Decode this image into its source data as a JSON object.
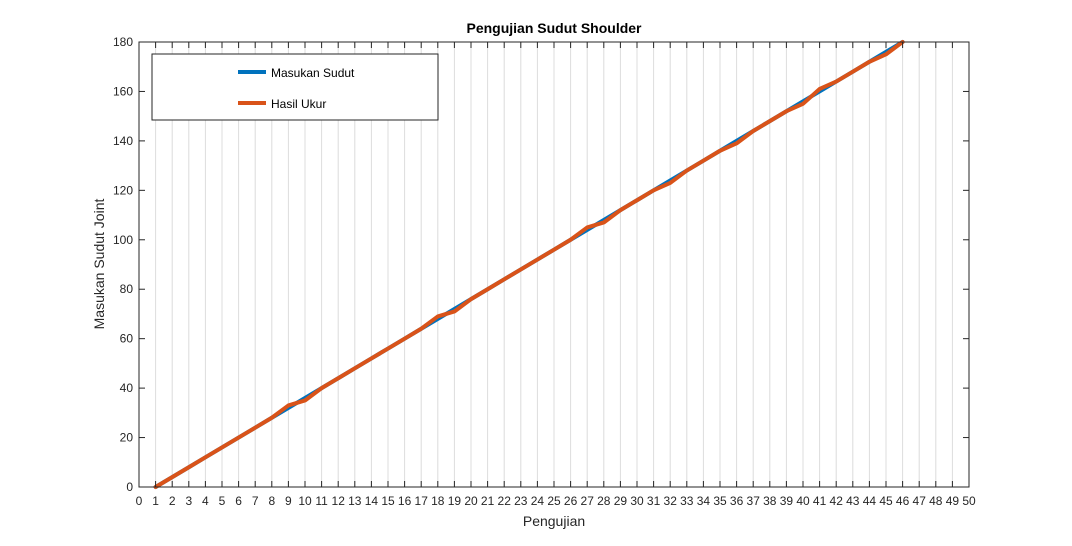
{
  "chart_data": {
    "type": "line",
    "title": "Pengujian Sudut Shoulder",
    "xlabel": "Pengujian",
    "ylabel": "Masukan Sudut Joint",
    "xlim": [
      0,
      50
    ],
    "ylim": [
      0,
      180
    ],
    "xticks": [
      0,
      1,
      2,
      3,
      4,
      5,
      6,
      7,
      8,
      9,
      10,
      11,
      12,
      13,
      14,
      15,
      16,
      17,
      18,
      19,
      20,
      21,
      22,
      23,
      24,
      25,
      26,
      27,
      28,
      29,
      30,
      31,
      32,
      33,
      34,
      35,
      36,
      37,
      38,
      39,
      40,
      41,
      42,
      43,
      44,
      45,
      46,
      47,
      48,
      49,
      50
    ],
    "yticks": [
      0,
      20,
      40,
      60,
      80,
      100,
      120,
      140,
      160,
      180
    ],
    "grid": "vertical",
    "legend_position": "top-left",
    "x": [
      1,
      2,
      3,
      4,
      5,
      6,
      7,
      8,
      9,
      10,
      11,
      12,
      13,
      14,
      15,
      16,
      17,
      18,
      19,
      20,
      21,
      22,
      23,
      24,
      25,
      26,
      27,
      28,
      29,
      30,
      31,
      32,
      33,
      34,
      35,
      36,
      37,
      38,
      39,
      40,
      41,
      42,
      43,
      44,
      45,
      46
    ],
    "series": [
      {
        "name": "Masukan Sudut",
        "color": "#0072BD",
        "values": [
          0,
          4,
          8,
          12,
          16,
          20,
          24,
          28,
          32,
          36,
          40,
          44,
          48,
          52,
          56,
          60,
          64,
          68,
          72,
          76,
          80,
          84,
          88,
          92,
          96,
          100,
          104,
          108,
          112,
          116,
          120,
          124,
          128,
          132,
          136,
          140,
          144,
          148,
          152,
          156,
          160,
          164,
          168,
          172,
          176,
          180
        ]
      },
      {
        "name": "Hasil Ukur",
        "color": "#D95319",
        "values": [
          0,
          4,
          8,
          12,
          16,
          20,
          24,
          28,
          33,
          35,
          40,
          44,
          48,
          52,
          56,
          60,
          64,
          69,
          71,
          76,
          80,
          84,
          88,
          92,
          96,
          100,
          105,
          107,
          112,
          116,
          120,
          123,
          128,
          132,
          136,
          139,
          144,
          148,
          152,
          155,
          161,
          164,
          168,
          172,
          175,
          180
        ]
      }
    ]
  }
}
